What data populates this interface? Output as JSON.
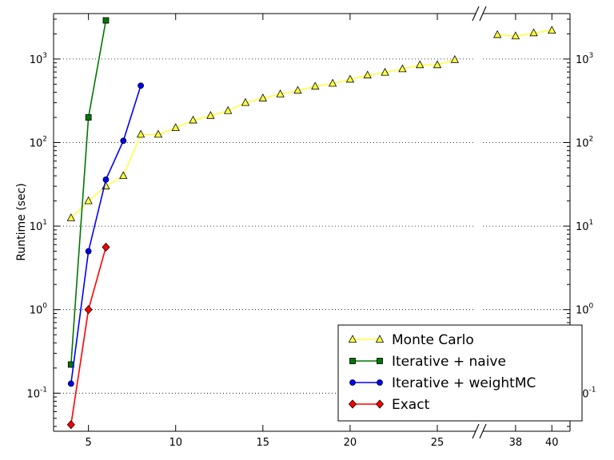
{
  "chart_data": {
    "type": "line",
    "title": "",
    "xlabel": "",
    "ylabel": "Runtime (sec)",
    "yscale": "log",
    "ylim": [
      0.035,
      3500
    ],
    "x_axis_break": true,
    "x_segments": [
      {
        "xlim": [
          3,
          27.2
        ],
        "ticks": [
          5,
          10,
          15,
          20,
          25
        ]
      },
      {
        "xlim": [
          36.2,
          41
        ],
        "ticks": [
          38,
          40
        ]
      }
    ],
    "y_ticks": [
      {
        "base": "10",
        "exp": "-1",
        "value": 0.1
      },
      {
        "base": "10",
        "exp": "0",
        "value": 1
      },
      {
        "base": "10",
        "exp": "1",
        "value": 10
      },
      {
        "base": "10",
        "exp": "2",
        "value": 100
      },
      {
        "base": "10",
        "exp": "3",
        "value": 1000
      }
    ],
    "grid": "y-major-dotted",
    "legend_position": "lower-right",
    "series": [
      {
        "name": "Monte Carlo",
        "color": "#ffff44",
        "marker": "triangle",
        "x": [
          4,
          5,
          6,
          7,
          8,
          9,
          10,
          11,
          12,
          13,
          14,
          15,
          16,
          17,
          18,
          19,
          20,
          21,
          22,
          23,
          24,
          25,
          26,
          37,
          38,
          39,
          40
        ],
        "y": [
          12.5,
          20,
          30,
          40,
          125,
          125,
          150,
          185,
          210,
          240,
          300,
          340,
          380,
          420,
          470,
          510,
          570,
          640,
          690,
          760,
          850,
          850,
          980,
          1950,
          1880,
          2050,
          2200
        ]
      },
      {
        "name": "Iterative + naive",
        "color": "#007700",
        "marker": "square",
        "x": [
          4,
          5,
          6
        ],
        "y": [
          0.22,
          200,
          2900
        ]
      },
      {
        "name": "Iterative + weightMC",
        "color": "#0000ff",
        "marker": "circle",
        "x": [
          4,
          5,
          6,
          7,
          8
        ],
        "y": [
          0.13,
          5,
          36,
          105,
          480
        ]
      },
      {
        "name": "Exact",
        "color": "#ff0000",
        "marker": "diamond",
        "x": [
          4,
          5,
          6
        ],
        "y": [
          0.042,
          1,
          5.6
        ]
      }
    ]
  }
}
